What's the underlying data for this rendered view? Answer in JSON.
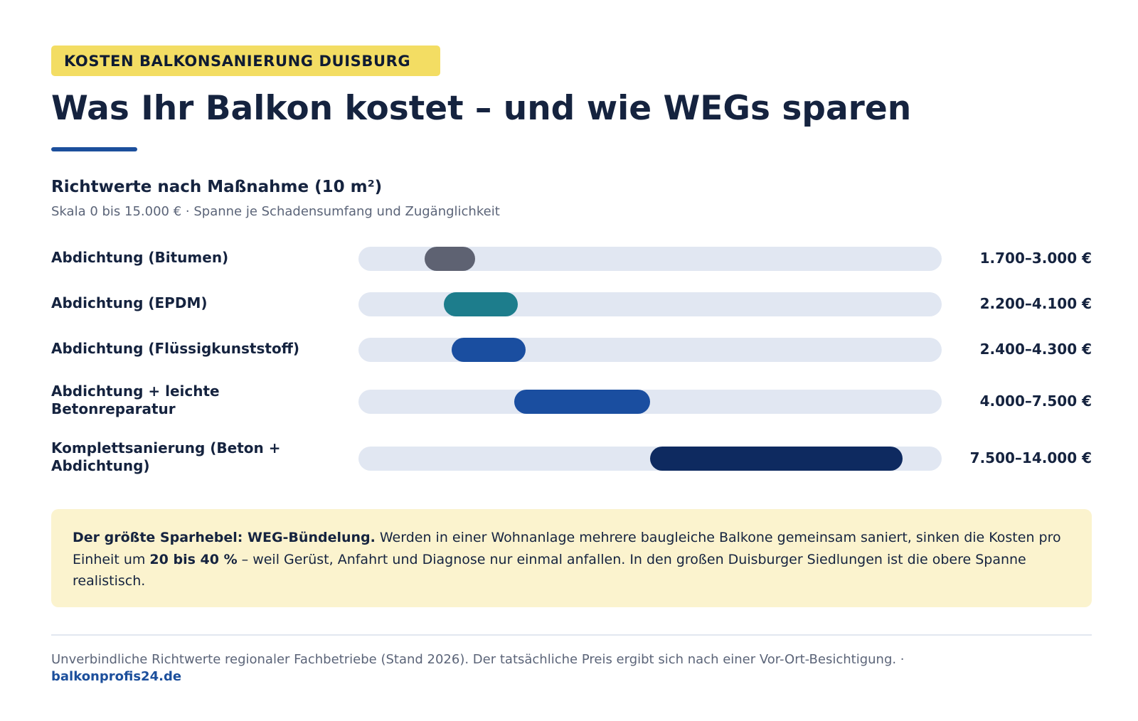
{
  "header": {
    "tag": "KOSTEN BALKONSANIERUNG DUISBURG",
    "title": "Was Ihr Balkon kostet – und wie WEGs sparen"
  },
  "section": {
    "title": "Richtwerte nach Maßnahme (10 m²)",
    "subtitle": "Skala 0 bis 15.000 € · Spanne je Schadensumfang und Zugänglichkeit"
  },
  "chart_data": {
    "type": "bar",
    "orientation": "horizontal-range",
    "xlim": [
      0,
      15000
    ],
    "unit": "€",
    "grid": false,
    "categories": [
      "Abdichtung (Bitumen)",
      "Abdichtung (EPDM)",
      "Abdichtung (Flüssigkunststoff)",
      "Abdichtung + leichte Betonreparatur",
      "Komplettsanierung (Beton + Abdichtung)"
    ],
    "ranges": [
      {
        "min": 1700,
        "max": 3000,
        "label": "1.700–3.000 €",
        "color": "#5e6272"
      },
      {
        "min": 2200,
        "max": 4100,
        "label": "2.200–4.100 €",
        "color": "#1d7d8c"
      },
      {
        "min": 2400,
        "max": 4300,
        "label": "2.400–4.300 €",
        "color": "#1a4ea0"
      },
      {
        "min": 4000,
        "max": 7500,
        "label": "4.000–7.500 €",
        "color": "#1a4ea0"
      },
      {
        "min": 7500,
        "max": 14000,
        "label": "7.500–14.000 €",
        "color": "#0e2a60"
      }
    ]
  },
  "note": {
    "lead": "Der größte Sparhebel: WEG-Bündelung.",
    "text1": " Werden in einer Wohnanlage mehrere baugleiche Balkone gemeinsam saniert, sinken die Kosten pro Einheit um ",
    "highlight": "20 bis 40 %",
    "text2": " – weil Gerüst, Anfahrt und Diagnose nur einmal anfallen. In den großen Duisburger Siedlungen ist die obere Spanne realistisch."
  },
  "footer": {
    "text": "Unverbindliche Richtwerte regionaler Fachbetriebe (Stand 2026). Der tatsächliche Preis ergibt sich nach einer Vor-Ort-Besichtigung.  ·",
    "link": "balkonprofis24.de"
  },
  "colors": {
    "tag_bg": "#f3dd63",
    "accent": "#1c4f9c",
    "track": "#e1e7f2",
    "note_bg": "#fbf3ce"
  }
}
